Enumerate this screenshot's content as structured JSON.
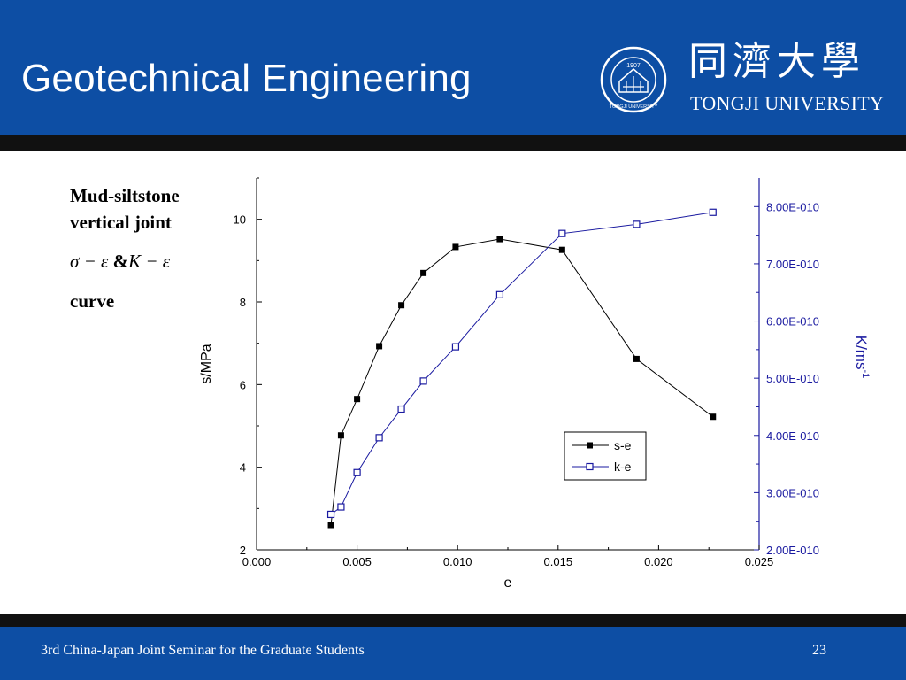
{
  "header": {
    "title": "Geotechnical Engineering",
    "logo_cn": "同濟大學",
    "logo_en": "TONGJI UNIVERSITY",
    "seal_text": "TONGJI UNIVERSITY",
    "seal_year": "1907"
  },
  "side": {
    "line1": "Mud-siltstone",
    "line2": "vertical joint",
    "formula_a": "σ − ε",
    "formula_amp": "&",
    "formula_b": "K − ε",
    "line3": "curve"
  },
  "footer": {
    "text": "3rd China-Japan Joint Seminar for the Graduate Students",
    "page": "23"
  },
  "colors": {
    "brand_blue": "#0d4ea4",
    "series_se": "#000000",
    "series_ke": "#1a1aa0"
  },
  "chart_data": {
    "type": "line",
    "xlabel": "e",
    "ylabel": "s/MPa",
    "y2label": "K/ms",
    "y2label_sup": "-1",
    "xlim": [
      0.0,
      0.025
    ],
    "ylim": [
      2,
      11
    ],
    "y2lim": [
      2e-10,
      8.5e-10
    ],
    "xticks": [
      "0.000",
      "0.005",
      "0.010",
      "0.015",
      "0.020",
      "0.025"
    ],
    "yticks": [
      "2",
      "4",
      "6",
      "8",
      "10"
    ],
    "y2ticks": [
      "2.00E-010",
      "3.00E-010",
      "4.00E-010",
      "5.00E-010",
      "6.00E-010",
      "7.00E-010",
      "8.00E-010"
    ],
    "legend_position": "bottom-right",
    "series": [
      {
        "name": "s-e",
        "axis": "left",
        "marker": "filled-square",
        "x": [
          0.0037,
          0.0042,
          0.005,
          0.0061,
          0.0072,
          0.0083,
          0.0099,
          0.0121,
          0.0152,
          0.0189,
          0.0227
        ],
        "y": [
          2.6,
          4.77,
          5.65,
          6.93,
          7.92,
          8.7,
          9.33,
          9.52,
          9.26,
          6.62,
          5.22
        ]
      },
      {
        "name": "k-e",
        "axis": "right",
        "marker": "open-square",
        "x": [
          0.0037,
          0.0042,
          0.005,
          0.0061,
          0.0072,
          0.0083,
          0.0099,
          0.0121,
          0.0152,
          0.0189,
          0.0227
        ],
        "y": [
          2.62e-10,
          2.75e-10,
          3.35e-10,
          3.96e-10,
          4.46e-10,
          4.95e-10,
          5.55e-10,
          6.46e-10,
          7.53e-10,
          7.69e-10,
          7.9e-10
        ]
      }
    ]
  }
}
